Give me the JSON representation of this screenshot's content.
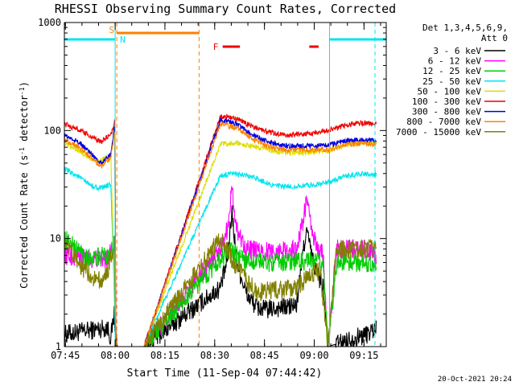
{
  "chart_data": {
    "type": "line",
    "title": "RHESSI Observing Summary Count Rates, Corrected",
    "xlabel": "Start Time (11-Sep-04 07:44:42)",
    "ylabel": "Corrected Count Rate (s⁻¹ detector⁻¹)",
    "ylabel_main": "Corrected Count Rate (s",
    "ylabel_sup1": "-1",
    "ylabel_mid": " detector",
    "ylabel_sup2": "-1",
    "ylabel_end": ")",
    "y_log": true,
    "ylim": [
      1,
      1000
    ],
    "xlim_minutes": [
      0,
      97
    ],
    "y_ticks": [
      {
        "label": "1",
        "value": 1
      },
      {
        "label": "10",
        "value": 10
      },
      {
        "label": "100",
        "value": 100
      },
      {
        "label": "1000",
        "value": 1000
      }
    ],
    "x_ticks": [
      {
        "label": "07:45",
        "minute": 0.3
      },
      {
        "label": "08:00",
        "minute": 15.3
      },
      {
        "label": "08:15",
        "minute": 30.3
      },
      {
        "label": "08:30",
        "minute": 45.3
      },
      {
        "label": "08:45",
        "minute": 60.3
      },
      {
        "label": "09:00",
        "minute": 75.3
      },
      {
        "label": "09:15",
        "minute": 90.3
      }
    ],
    "legend": {
      "header_line1": "Det 1,3,4,5,6,9,",
      "header_line2": "Att 0",
      "placement": "right"
    },
    "series": [
      {
        "name": "3 - 6 keV",
        "color": "#000000",
        "points": [
          [
            0,
            1.3
          ],
          [
            13,
            1.5
          ],
          [
            14,
            1.2
          ],
          [
            15,
            2.0
          ],
          [
            15.9,
            1.0
          ],
          [
            24,
            1.0
          ],
          [
            47,
            3.5
          ],
          [
            49,
            6
          ],
          [
            50.5,
            18
          ],
          [
            52,
            6
          ],
          [
            55,
            3
          ],
          [
            58,
            2.3
          ],
          [
            61,
            2.2
          ],
          [
            70,
            2.4
          ],
          [
            72,
            8
          ],
          [
            73,
            12
          ],
          [
            75,
            6
          ],
          [
            78,
            3.5
          ],
          [
            79.5,
            1.0
          ],
          [
            91,
            1.3
          ],
          [
            94,
            1.5
          ]
        ]
      },
      {
        "name": "6 - 12 keV",
        "color": "#ff00ff",
        "points": [
          [
            0,
            7
          ],
          [
            8,
            6.5
          ],
          [
            13,
            6.5
          ],
          [
            15,
            11
          ],
          [
            15.6,
            1.0
          ],
          [
            24,
            1.0
          ],
          [
            47,
            8
          ],
          [
            49,
            12
          ],
          [
            50.5,
            28
          ],
          [
            52,
            12
          ],
          [
            55,
            8
          ],
          [
            60,
            7.5
          ],
          [
            70,
            8
          ],
          [
            72,
            15
          ],
          [
            73,
            23
          ],
          [
            75,
            10
          ],
          [
            78,
            7
          ],
          [
            79.5,
            1.0
          ],
          [
            82,
            8
          ],
          [
            90,
            8
          ],
          [
            94,
            7
          ]
        ]
      },
      {
        "name": "12 - 25 keV",
        "color": "#00cc00",
        "points": [
          [
            0,
            10
          ],
          [
            4,
            8
          ],
          [
            8,
            6.5
          ],
          [
            13,
            7
          ],
          [
            15,
            9
          ],
          [
            15.5,
            1.0
          ],
          [
            24,
            1.0
          ],
          [
            47,
            6.5
          ],
          [
            50,
            8
          ],
          [
            53,
            6.5
          ],
          [
            60,
            6
          ],
          [
            70,
            6.2
          ],
          [
            78,
            6
          ],
          [
            79.5,
            1.0
          ],
          [
            82,
            6
          ],
          [
            90,
            6
          ],
          [
            94,
            6
          ]
        ]
      },
      {
        "name": "25 - 50 keV",
        "color": "#00e5ee",
        "points": [
          [
            0,
            44
          ],
          [
            4,
            38
          ],
          [
            8,
            31
          ],
          [
            11,
            29
          ],
          [
            14,
            32
          ],
          [
            15.5,
            1.0
          ],
          [
            24,
            1.0
          ],
          [
            47,
            38
          ],
          [
            52,
            40
          ],
          [
            58,
            36
          ],
          [
            63,
            31
          ],
          [
            67,
            30
          ],
          [
            73,
            31
          ],
          [
            79.5,
            33
          ],
          [
            85,
            38
          ],
          [
            90,
            40
          ],
          [
            94,
            39
          ]
        ]
      },
      {
        "name": "50 - 100 keV",
        "color": "#dddd00",
        "points": [
          [
            0,
            75
          ],
          [
            4,
            66
          ],
          [
            8,
            55
          ],
          [
            11,
            53
          ],
          [
            14,
            58
          ],
          [
            15.5,
            1.0
          ],
          [
            24,
            1.0
          ],
          [
            47,
            75
          ],
          [
            52,
            76
          ],
          [
            58,
            70
          ],
          [
            63,
            64
          ],
          [
            67,
            62
          ],
          [
            73,
            63
          ],
          [
            79.5,
            65
          ],
          [
            85,
            74
          ],
          [
            90,
            77
          ],
          [
            94,
            76
          ]
        ]
      },
      {
        "name": "100 - 300 keV",
        "color": "#ee0000",
        "points": [
          [
            0,
            115
          ],
          [
            4,
            103
          ],
          [
            8,
            88
          ],
          [
            11,
            78
          ],
          [
            14,
            92
          ],
          [
            15.3,
            125
          ],
          [
            15.5,
            1.0
          ],
          [
            24,
            1.0
          ],
          [
            47,
            135
          ],
          [
            52,
            128
          ],
          [
            57,
            108
          ],
          [
            62,
            96
          ],
          [
            67,
            90
          ],
          [
            73,
            93
          ],
          [
            79.5,
            100
          ],
          [
            85,
            113
          ],
          [
            90,
            118
          ],
          [
            94,
            115
          ]
        ]
      },
      {
        "name": "300 - 800 keV",
        "color": "#0000dd",
        "points": [
          [
            0,
            90
          ],
          [
            4,
            79
          ],
          [
            8,
            62
          ],
          [
            11,
            50
          ],
          [
            14,
            60
          ],
          [
            15.2,
            115
          ],
          [
            15.5,
            1.0
          ],
          [
            24,
            1.0
          ],
          [
            47,
            125
          ],
          [
            52,
            115
          ],
          [
            57,
            90
          ],
          [
            62,
            77
          ],
          [
            67,
            72
          ],
          [
            73,
            72
          ],
          [
            79.5,
            73
          ],
          [
            85,
            80
          ],
          [
            90,
            82
          ],
          [
            94,
            80
          ]
        ]
      },
      {
        "name": "800 - 7000 keV",
        "color": "#ff8000",
        "points": [
          [
            0,
            82
          ],
          [
            4,
            72
          ],
          [
            8,
            57
          ],
          [
            11,
            46
          ],
          [
            14,
            55
          ],
          [
            15.2,
            100
          ],
          [
            15.5,
            1.0
          ],
          [
            24,
            1.0
          ],
          [
            47,
            115
          ],
          [
            52,
            105
          ],
          [
            57,
            82
          ],
          [
            62,
            70
          ],
          [
            67,
            66
          ],
          [
            73,
            66
          ],
          [
            79.5,
            67
          ],
          [
            85,
            74
          ],
          [
            90,
            76
          ],
          [
            94,
            74
          ]
        ]
      },
      {
        "name": "7000 - 15000 keV",
        "color": "#808000",
        "points": [
          [
            0,
            9
          ],
          [
            4,
            6
          ],
          [
            8,
            4.5
          ],
          [
            11,
            4
          ],
          [
            13,
            5
          ],
          [
            15,
            9
          ],
          [
            15.5,
            1.0
          ],
          [
            24,
            1.0
          ],
          [
            47,
            10
          ],
          [
            49,
            8
          ],
          [
            51,
            6
          ],
          [
            55,
            4
          ],
          [
            58,
            3.2
          ],
          [
            63,
            3.3
          ],
          [
            70,
            3.5
          ],
          [
            74,
            4.5
          ],
          [
            77,
            5
          ],
          [
            79.5,
            1.0
          ],
          [
            82,
            8
          ],
          [
            90,
            8
          ],
          [
            94,
            8
          ]
        ]
      }
    ],
    "state_bars": [
      {
        "label": "",
        "color": "#00e5ee",
        "from": 0,
        "to": 15.3
      },
      {
        "label": "N",
        "color": "#00e5ee",
        "from": 15.3,
        "to": 15.3
      },
      {
        "label": "S",
        "color": "#ff8000",
        "from": 15.8,
        "to": 40.6
      },
      {
        "label": "F",
        "color": "#ee0000",
        "from": 47.7,
        "to": 52.9
      },
      {
        "label": "",
        "color": "#ee0000",
        "from": 73.8,
        "to": 76.6
      },
      {
        "label": "",
        "color": "#00e5ee",
        "from": 79.9,
        "to": 97
      }
    ],
    "markers": [
      {
        "color": "#ff8000",
        "minute": 15.8,
        "style": "dashed"
      },
      {
        "color": "#ff8000",
        "minute": 40.6,
        "style": "dashed"
      },
      {
        "color": "#00e5ee",
        "minute": 15.3,
        "style": "solid"
      },
      {
        "color": "#00e5ee",
        "minute": 79.9,
        "style": "solid"
      },
      {
        "color": "#00e5ee",
        "minute": 93.6,
        "style": "dashed"
      }
    ],
    "timestamp": "20-Oct-2021 20:24"
  }
}
